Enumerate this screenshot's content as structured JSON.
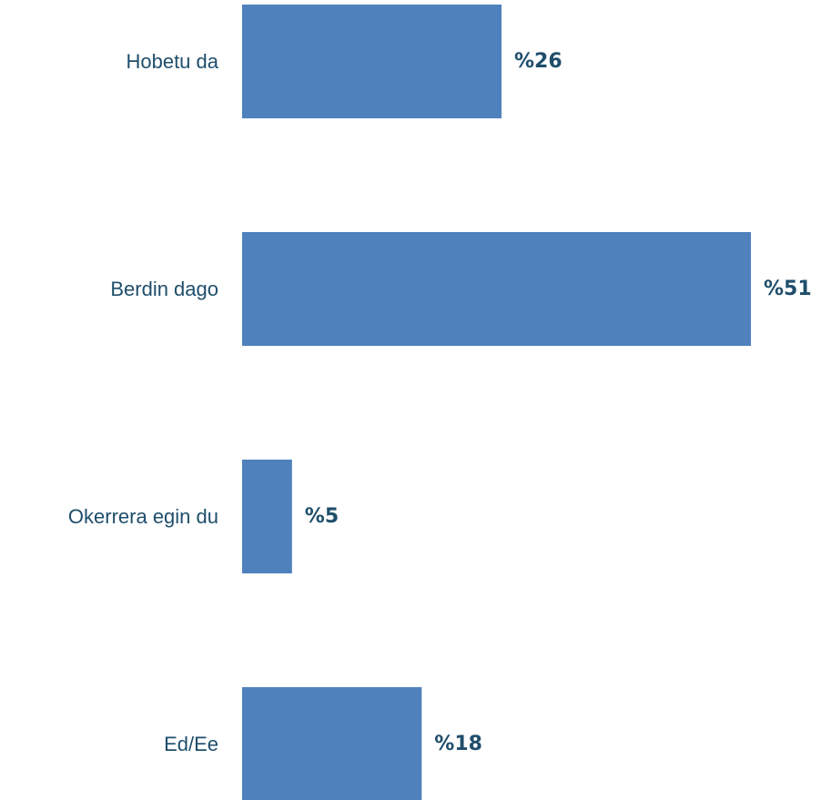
{
  "chart_data": {
    "type": "bar",
    "orientation": "horizontal",
    "categories": [
      "Hobetu da",
      "Berdin dago",
      "Okerrera egin du",
      "Ed/Ee"
    ],
    "values": [
      26,
      51,
      5,
      18
    ],
    "value_labels": [
      "%26",
      "%51",
      "%5",
      "%18"
    ],
    "title": "",
    "xlabel": "",
    "ylabel": "",
    "xlim": [
      0,
      51
    ],
    "grid": false,
    "legend": "none",
    "bar_color": "#4f81bd",
    "label_color": "#1f4e6b"
  }
}
